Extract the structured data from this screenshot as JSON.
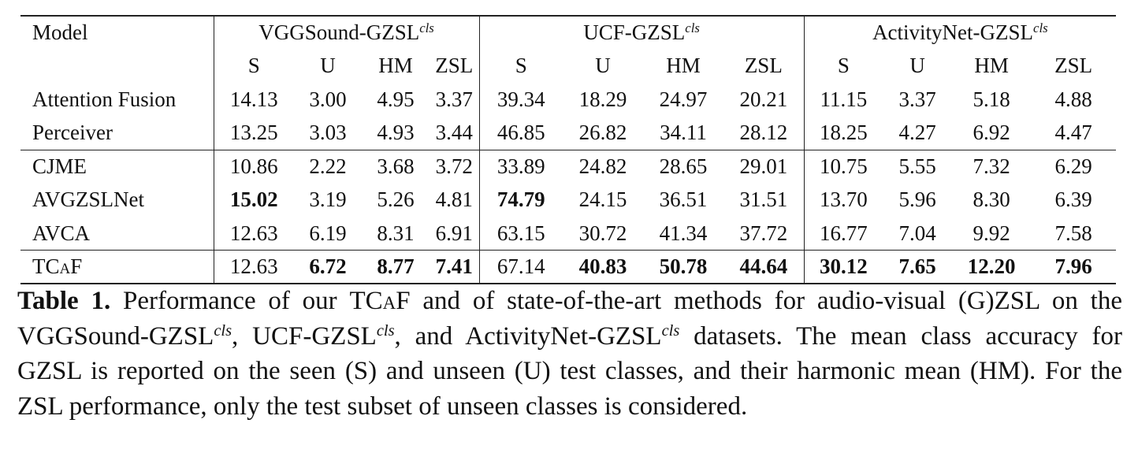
{
  "table": {
    "model_header": "Model",
    "groups": [
      {
        "name": "VGGSound-GZSL",
        "sup": "cls"
      },
      {
        "name": "UCF-GZSL",
        "sup": "cls"
      },
      {
        "name": "ActivityNet-GZSL",
        "sup": "cls"
      }
    ],
    "metrics": [
      "S",
      "U",
      "HM",
      "ZSL"
    ],
    "rows": [
      {
        "model": "Attention Fusion",
        "values": [
          "14.13",
          "3.00",
          "4.95",
          "3.37",
          "39.34",
          "18.29",
          "24.97",
          "20.21",
          "11.15",
          "3.37",
          "5.18",
          "4.88"
        ],
        "bold": []
      },
      {
        "model": "Perceiver",
        "values": [
          "13.25",
          "3.03",
          "4.93",
          "3.44",
          "46.85",
          "26.82",
          "34.11",
          "28.12",
          "18.25",
          "4.27",
          "6.92",
          "4.47"
        ],
        "bold": []
      },
      {
        "model": "CJME",
        "values": [
          "10.86",
          "2.22",
          "3.68",
          "3.72",
          "33.89",
          "24.82",
          "28.65",
          "29.01",
          "10.75",
          "5.55",
          "7.32",
          "6.29"
        ],
        "bold": []
      },
      {
        "model": "AVGZSLNet",
        "values": [
          "15.02",
          "3.19",
          "5.26",
          "4.81",
          "74.79",
          "24.15",
          "36.51",
          "31.51",
          "13.70",
          "5.96",
          "8.30",
          "6.39"
        ],
        "bold": [
          0,
          4
        ]
      },
      {
        "model": "AVCA",
        "values": [
          "12.63",
          "6.19",
          "8.31",
          "6.91",
          "63.15",
          "30.72",
          "41.34",
          "37.72",
          "16.77",
          "7.04",
          "9.92",
          "7.58"
        ],
        "bold": []
      },
      {
        "model": "TCaF",
        "values": [
          "12.63",
          "6.72",
          "8.77",
          "7.41",
          "67.14",
          "40.83",
          "50.78",
          "44.64",
          "30.12",
          "7.65",
          "12.20",
          "7.96"
        ],
        "bold": [
          1,
          2,
          3,
          5,
          6,
          7,
          8,
          9,
          10,
          11
        ]
      }
    ]
  },
  "caption": {
    "label": "Table 1.",
    "t1": "Performance of our ",
    "method": "TCaF",
    "t2": " and of state-of-the-art methods for audio-visual (G)ZSL on the ",
    "d1": "VGGSound-GZSL",
    "t3": ", ",
    "d2": "UCF-GZSL",
    "t4": ", and ",
    "d3": "ActivityNet-GZSL",
    "t5": " datasets. The mean class accuracy for GZSL is reported on the seen (S) and unseen (U) test classes, and their harmonic mean (HM). For the ZSL performance, only the test subset of unseen classes is considered.",
    "sup": "cls"
  }
}
